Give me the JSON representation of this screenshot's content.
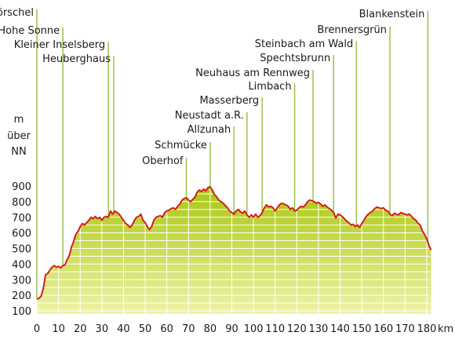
{
  "chart_data": {
    "type": "area",
    "title": "",
    "xlabel": "km",
    "ylabel": [
      "m",
      "über",
      "NN"
    ],
    "xlim": [
      0,
      180
    ],
    "ylim": [
      100,
      900
    ],
    "x_ticks": [
      0,
      10,
      20,
      30,
      40,
      50,
      60,
      70,
      80,
      90,
      100,
      110,
      120,
      130,
      140,
      150,
      160,
      170,
      180
    ],
    "y_ticks": [
      100,
      200,
      300,
      400,
      500,
      600,
      700,
      800,
      900
    ],
    "grid": true,
    "legend": "none",
    "colors": {
      "fill_top": "#a9c70e",
      "fill_bottom": "#eef3a8",
      "line": "#d31f16",
      "marker_line": "#9bc34a",
      "grid": "#ffffff"
    },
    "series": [
      {
        "values": [
          [
            0,
            175
          ],
          [
            1,
            180
          ],
          [
            2,
            195
          ],
          [
            3,
            245
          ],
          [
            4,
            330
          ],
          [
            5,
            340
          ],
          [
            6,
            360
          ],
          [
            7,
            380
          ],
          [
            8,
            390
          ],
          [
            9,
            380
          ],
          [
            10,
            385
          ],
          [
            11,
            375
          ],
          [
            12,
            390
          ],
          [
            13,
            395
          ],
          [
            14,
            430
          ],
          [
            15,
            455
          ],
          [
            16,
            510
          ],
          [
            17,
            545
          ],
          [
            18,
            590
          ],
          [
            19,
            610
          ],
          [
            20,
            640
          ],
          [
            21,
            660
          ],
          [
            22,
            650
          ],
          [
            23,
            665
          ],
          [
            24,
            680
          ],
          [
            25,
            700
          ],
          [
            26,
            690
          ],
          [
            27,
            705
          ],
          [
            28,
            690
          ],
          [
            29,
            700
          ],
          [
            30,
            680
          ],
          [
            31,
            700
          ],
          [
            32,
            705
          ],
          [
            33,
            700
          ],
          [
            34,
            740
          ],
          [
            35,
            720
          ],
          [
            36,
            740
          ],
          [
            37,
            730
          ],
          [
            38,
            720
          ],
          [
            39,
            700
          ],
          [
            40,
            680
          ],
          [
            41,
            660
          ],
          [
            42,
            650
          ],
          [
            43,
            635
          ],
          [
            44,
            650
          ],
          [
            45,
            680
          ],
          [
            46,
            700
          ],
          [
            47,
            705
          ],
          [
            48,
            720
          ],
          [
            49,
            680
          ],
          [
            50,
            665
          ],
          [
            51,
            640
          ],
          [
            52,
            620
          ],
          [
            53,
            640
          ],
          [
            54,
            680
          ],
          [
            55,
            700
          ],
          [
            56,
            705
          ],
          [
            57,
            710
          ],
          [
            58,
            700
          ],
          [
            59,
            730
          ],
          [
            60,
            740
          ],
          [
            61,
            745
          ],
          [
            62,
            755
          ],
          [
            63,
            760
          ],
          [
            64,
            750
          ],
          [
            65,
            770
          ],
          [
            66,
            785
          ],
          [
            67,
            810
          ],
          [
            68,
            820
          ],
          [
            69,
            825
          ],
          [
            70,
            810
          ],
          [
            71,
            800
          ],
          [
            72,
            815
          ],
          [
            73,
            830
          ],
          [
            74,
            860
          ],
          [
            75,
            875
          ],
          [
            76,
            865
          ],
          [
            77,
            880
          ],
          [
            78,
            870
          ],
          [
            79,
            890
          ],
          [
            80,
            895
          ],
          [
            81,
            875
          ],
          [
            82,
            845
          ],
          [
            83,
            830
          ],
          [
            84,
            810
          ],
          [
            85,
            800
          ],
          [
            86,
            790
          ],
          [
            87,
            775
          ],
          [
            88,
            760
          ],
          [
            89,
            740
          ],
          [
            90,
            730
          ],
          [
            91,
            720
          ],
          [
            92,
            740
          ],
          [
            93,
            750
          ],
          [
            94,
            735
          ],
          [
            95,
            725
          ],
          [
            96,
            740
          ],
          [
            97,
            715
          ],
          [
            98,
            700
          ],
          [
            99,
            715
          ],
          [
            100,
            700
          ],
          [
            101,
            720
          ],
          [
            102,
            700
          ],
          [
            103,
            710
          ],
          [
            104,
            730
          ],
          [
            105,
            760
          ],
          [
            106,
            780
          ],
          [
            107,
            765
          ],
          [
            108,
            770
          ],
          [
            109,
            760
          ],
          [
            110,
            740
          ],
          [
            111,
            760
          ],
          [
            112,
            780
          ],
          [
            113,
            790
          ],
          [
            114,
            785
          ],
          [
            115,
            780
          ],
          [
            116,
            770
          ],
          [
            117,
            750
          ],
          [
            118,
            760
          ],
          [
            119,
            740
          ],
          [
            120,
            745
          ],
          [
            121,
            760
          ],
          [
            122,
            770
          ],
          [
            123,
            765
          ],
          [
            124,
            780
          ],
          [
            125,
            800
          ],
          [
            126,
            810
          ],
          [
            127,
            805
          ],
          [
            128,
            800
          ],
          [
            129,
            790
          ],
          [
            130,
            795
          ],
          [
            131,
            785
          ],
          [
            132,
            770
          ],
          [
            133,
            780
          ],
          [
            134,
            765
          ],
          [
            135,
            755
          ],
          [
            136,
            745
          ],
          [
            137,
            730
          ],
          [
            138,
            695
          ],
          [
            139,
            720
          ],
          [
            140,
            715
          ],
          [
            141,
            705
          ],
          [
            142,
            690
          ],
          [
            143,
            675
          ],
          [
            144,
            665
          ],
          [
            145,
            650
          ],
          [
            146,
            655
          ],
          [
            147,
            640
          ],
          [
            148,
            650
          ],
          [
            149,
            635
          ],
          [
            150,
            660
          ],
          [
            151,
            680
          ],
          [
            152,
            705
          ],
          [
            153,
            720
          ],
          [
            154,
            730
          ],
          [
            155,
            740
          ],
          [
            156,
            755
          ],
          [
            157,
            765
          ],
          [
            158,
            760
          ],
          [
            159,
            755
          ],
          [
            160,
            760
          ],
          [
            161,
            745
          ],
          [
            162,
            740
          ],
          [
            163,
            720
          ],
          [
            164,
            710
          ],
          [
            165,
            725
          ],
          [
            166,
            720
          ],
          [
            167,
            715
          ],
          [
            168,
            730
          ],
          [
            169,
            725
          ],
          [
            170,
            720
          ],
          [
            171,
            715
          ],
          [
            172,
            720
          ],
          [
            173,
            705
          ],
          [
            174,
            690
          ],
          [
            175,
            680
          ],
          [
            176,
            660
          ],
          [
            177,
            650
          ],
          [
            178,
            610
          ],
          [
            179,
            590
          ],
          [
            180,
            560
          ],
          [
            181,
            520
          ],
          [
            182,
            490
          ]
        ]
      }
    ],
    "annotations": [
      {
        "label": "Hörschel",
        "km": 0
      },
      {
        "label": "Hohe Sonne",
        "km": 12
      },
      {
        "label": "Kleiner Inselsberg",
        "km": 33
      },
      {
        "label": "Heuberghaus",
        "km": 35.5
      },
      {
        "label": "Oberhof",
        "km": 69
      },
      {
        "label": "Schmücke",
        "km": 80
      },
      {
        "label": "Allzunah",
        "km": 91
      },
      {
        "label": "Neustadt a.R.",
        "km": 97
      },
      {
        "label": "Masserberg",
        "km": 104
      },
      {
        "label": "Limbach",
        "km": 119
      },
      {
        "label": "Neuhaus am Rennweg",
        "km": 127.5
      },
      {
        "label": "Spechtsbrunn",
        "km": 137
      },
      {
        "label": "Steinbach am Wald",
        "km": 147.5
      },
      {
        "label": "Brennersgrün",
        "km": 163
      },
      {
        "label": "Blankenstein",
        "km": 180.5
      }
    ]
  }
}
